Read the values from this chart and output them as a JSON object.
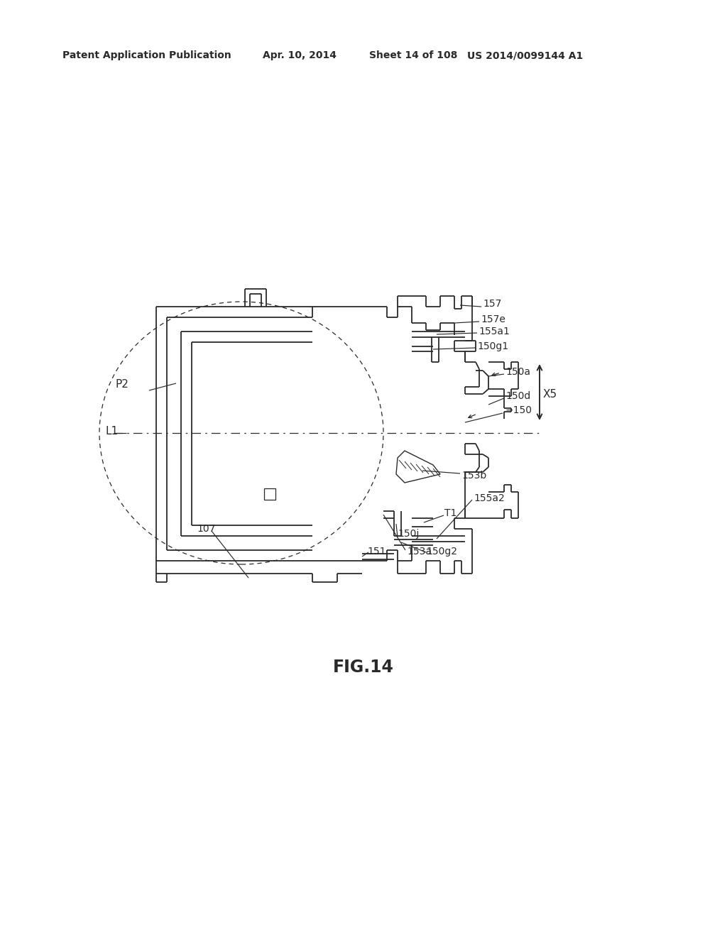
{
  "bg_color": "#ffffff",
  "line_color": "#2a2a2a",
  "header_text": "Patent Application Publication",
  "header_date": "Apr. 10, 2014",
  "header_sheet": "Sheet 14 of 108",
  "header_patent": "US 2014/0099144 A1",
  "figure_label": "FIG.14"
}
